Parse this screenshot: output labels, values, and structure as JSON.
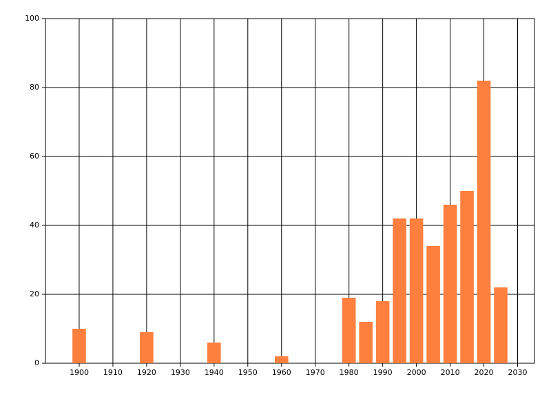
{
  "chart_data": {
    "type": "bar",
    "x": [
      1900,
      1920,
      1940,
      1960,
      1980,
      1985,
      1990,
      1995,
      2000,
      2005,
      2010,
      2015,
      2020,
      2025
    ],
    "values": [
      10,
      9,
      6,
      2,
      19,
      12,
      18,
      42,
      42,
      34,
      46,
      50,
      82,
      22
    ],
    "bar_width": 4,
    "color": "#ff7f3f",
    "xlim": [
      1890,
      2035
    ],
    "xticks": [
      1900,
      1910,
      1920,
      1930,
      1940,
      1950,
      1960,
      1970,
      1980,
      1990,
      2000,
      2010,
      2020,
      2030
    ],
    "ylim": [
      0,
      100
    ],
    "yticks": [
      0,
      20,
      40,
      60,
      80,
      100
    ],
    "grid": true
  }
}
